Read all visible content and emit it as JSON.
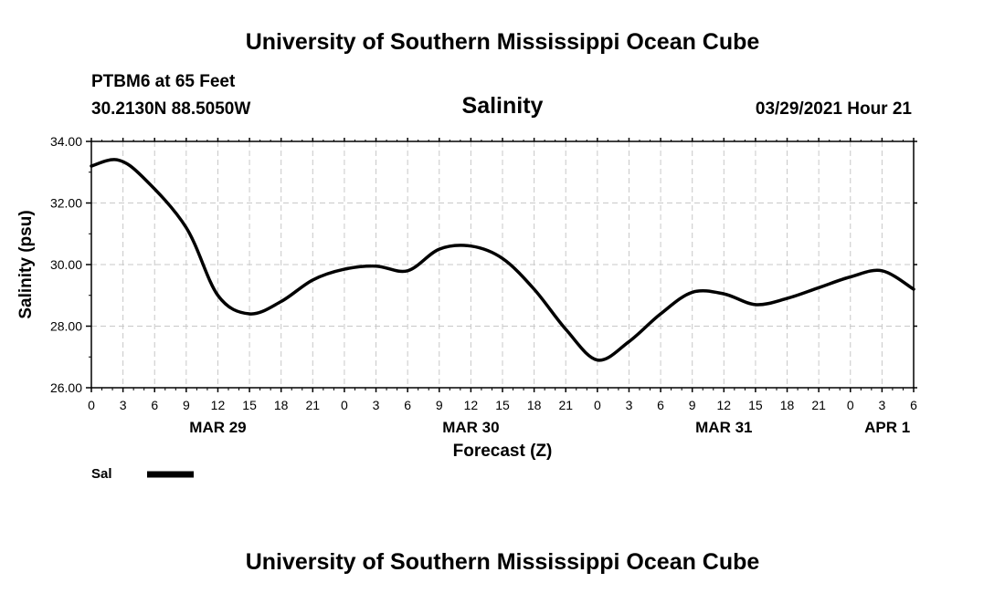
{
  "header": {
    "title_top": "University of Southern Mississippi Ocean Cube",
    "station": "PTBM6 at 65 Feet",
    "coords": "30.2130N  88.5050W",
    "chart_name": "Salinity",
    "timestamp": "03/29/2021 Hour 21"
  },
  "footer": {
    "title_bottom": "University of Southern Mississippi Ocean Cube"
  },
  "legend": {
    "label": "Sal",
    "color": "#000000"
  },
  "chart_data": {
    "type": "line",
    "title": "Salinity",
    "xlabel": "Forecast (Z)",
    "ylabel": "Salinity (psu)",
    "ylim": [
      26,
      34
    ],
    "xlim": [
      0,
      78
    ],
    "yticks": [
      26,
      28,
      30,
      32,
      34
    ],
    "ytick_labels": [
      "26.00",
      "28.00",
      "30.00",
      "32.00",
      "34.00"
    ],
    "xticks": [
      0,
      3,
      6,
      9,
      12,
      15,
      18,
      21,
      24,
      27,
      30,
      33,
      36,
      39,
      42,
      45,
      48,
      51,
      54,
      57,
      60,
      63,
      66,
      69,
      72,
      75,
      78
    ],
    "xtick_labels": [
      "0",
      "3",
      "6",
      "9",
      "12",
      "15",
      "18",
      "21",
      "0",
      "3",
      "6",
      "9",
      "12",
      "15",
      "18",
      "21",
      "0",
      "3",
      "6",
      "9",
      "12",
      "15",
      "18",
      "21",
      "0",
      "3",
      "6"
    ],
    "day_labels": [
      {
        "x": 12,
        "label": "MAR 29"
      },
      {
        "x": 36,
        "label": "MAR 30"
      },
      {
        "x": 60,
        "label": "MAR 31"
      },
      {
        "x": 75.5,
        "label": "APR 1"
      }
    ],
    "grid": true,
    "series": [
      {
        "name": "Sal",
        "x": [
          0,
          2.5,
          5,
          9,
          12,
          15,
          18,
          21,
          24,
          27,
          30,
          33,
          36,
          39,
          42,
          45,
          48,
          51,
          54,
          57,
          60,
          63,
          66,
          69,
          72,
          75,
          78
        ],
        "values": [
          33.2,
          33.4,
          32.8,
          31.2,
          29.0,
          28.4,
          28.8,
          29.5,
          29.85,
          29.95,
          29.8,
          30.5,
          30.6,
          30.2,
          29.2,
          27.9,
          26.9,
          27.5,
          28.4,
          29.1,
          29.05,
          28.7,
          28.9,
          29.25,
          29.6,
          29.8,
          29.2
        ]
      }
    ]
  }
}
